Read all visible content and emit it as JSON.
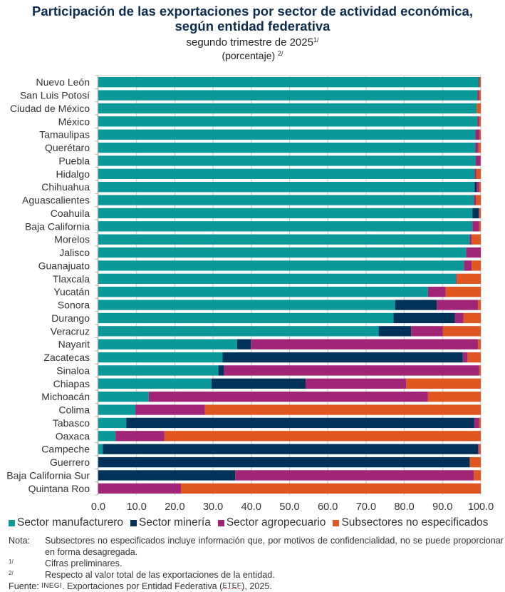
{
  "header": {
    "title_line1": "Participación de las exportaciones por sector de actividad económica,",
    "title_line2": "según entidad federativa",
    "subtitle": "segundo trimestre de 2025",
    "subtitle_sup": "1/",
    "unit": "(porcentaje)",
    "unit_sup": "2/"
  },
  "colors": {
    "manufacturero": "#0a9899",
    "mineria": "#00325a",
    "agropecuario": "#a02576",
    "no_especificados": "#df5620",
    "grid": "#c8c8c8",
    "axis": "#bbbbbb"
  },
  "legend": [
    {
      "label": "Sector manufacturero",
      "color": "#0a9899"
    },
    {
      "label": "Sector minería",
      "color": "#00325a"
    },
    {
      "label": "Sector agropecuario",
      "color": "#a02576"
    },
    {
      "label": "Subsectores no especificados",
      "color": "#df5620"
    }
  ],
  "notes": {
    "nota_key": "Nota:",
    "nota_text": "Subsectores no especificados incluye información que, por motivos de confidencialidad, no se puede proporcionar en forma desagregada.",
    "n1_key": "1/",
    "n1_text": "Cifras preliminares.",
    "n2_key": "2/",
    "n2_text": "Respecto al valor total de las exportaciones de la entidad.",
    "fuente_key": "Fuente:",
    "fuente_org": "INEGI",
    "fuente_text_a": ". Exportaciones por Entidad Federativa (",
    "fuente_abbr": "ETEF",
    "fuente_text_b": "), 2025."
  },
  "chart_data": {
    "type": "bar",
    "orientation": "horizontal",
    "stacked": true,
    "title": "Participación de las exportaciones por sector de actividad económica, según entidad federativa",
    "subtitle": "segundo trimestre de 2025 (porcentaje)",
    "xlabel": "",
    "ylabel": "",
    "xlim": [
      0,
      100
    ],
    "xticks": [
      0,
      10,
      20,
      30,
      40,
      50,
      60,
      70,
      80,
      90,
      100
    ],
    "xtick_labels": [
      "0.0",
      "10.0",
      "20.0",
      "30.0",
      "40.0",
      "50.0",
      "60.0",
      "70.0",
      "80.0",
      "90.0",
      "100.0"
    ],
    "grid": true,
    "legend_position": "bottom",
    "categories": [
      "Nuevo León",
      "San Luis Potosí",
      "Ciudad de México",
      "México",
      "Tamaulipas",
      "Querétaro",
      "Puebla",
      "Hidalgo",
      "Chihuahua",
      "Aguascalientes",
      "Coahuila",
      "Baja California",
      "Morelos",
      "Jalisco",
      "Guanajuato",
      "Tlaxcala",
      "Yucatán",
      "Sonora",
      "Durango",
      "Veracruz",
      "Nayarit",
      "Zacatecas",
      "Sinaloa",
      "Chiapas",
      "Michoacán",
      "Colima",
      "Tabasco",
      "Oaxaca",
      "Campeche",
      "Guerrero",
      "Baja California Sur",
      "Quintana Roo"
    ],
    "series": [
      {
        "name": "Sector manufacturero",
        "color": "#0a9899",
        "values": [
          99.4,
          99.1,
          98.9,
          99.1,
          98.6,
          98.6,
          98.7,
          98.4,
          98.4,
          98.2,
          97.8,
          97.8,
          97.1,
          96.2,
          95.6,
          93.5,
          86.2,
          77.6,
          77.2,
          73.3,
          36.3,
          32.5,
          31.4,
          29.6,
          13.2,
          9.7,
          7.3,
          4.5,
          1.2,
          0.0,
          0.0,
          0.0
        ]
      },
      {
        "name": "Sector minería",
        "color": "#00325a",
        "values": [
          0.2,
          0.0,
          0.0,
          0.0,
          0.0,
          0.0,
          0.0,
          0.0,
          0.5,
          0.0,
          1.7,
          0.0,
          0.0,
          0.0,
          0.0,
          0.0,
          0.0,
          10.9,
          16.0,
          8.5,
          3.6,
          62.8,
          1.5,
          24.6,
          0.0,
          0.0,
          91.0,
          0.0,
          98.1,
          97.1,
          35.8,
          0.0
        ]
      },
      {
        "name": "Sector agropecuario",
        "color": "#a02576",
        "values": [
          0.0,
          0.5,
          0.0,
          0.5,
          1.1,
          0.8,
          1.2,
          0.4,
          0.7,
          0.5,
          0.1,
          1.8,
          0.5,
          3.8,
          2.0,
          0.2,
          4.6,
          10.8,
          2.3,
          8.3,
          59.4,
          1.3,
          66.7,
          26.3,
          73.0,
          18.2,
          1.3,
          12.8,
          0.3,
          0.0,
          62.4,
          21.6
        ]
      },
      {
        "name": "Subsectores no especificados",
        "color": "#df5620",
        "values": [
          0.4,
          0.4,
          1.1,
          0.4,
          0.3,
          0.6,
          0.1,
          1.2,
          0.4,
          1.3,
          0.4,
          0.4,
          2.4,
          0.0,
          2.4,
          6.3,
          9.2,
          0.7,
          4.5,
          9.9,
          0.7,
          3.4,
          0.4,
          19.5,
          13.8,
          72.1,
          0.4,
          82.7,
          0.4,
          2.9,
          1.8,
          78.4
        ]
      }
    ]
  }
}
